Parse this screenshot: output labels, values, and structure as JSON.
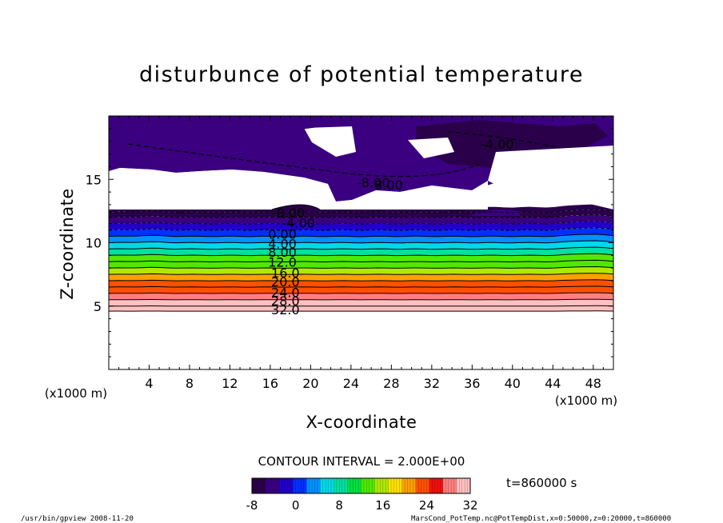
{
  "chart_data": {
    "type": "heatmap",
    "title": "disturbunce of potential temperature",
    "xlabel": "X-coordinate",
    "ylabel": "Z-coordinate",
    "x_unit": "(x1000 m)",
    "z_unit": "(x1000 m)",
    "xlim": [
      0,
      50
    ],
    "ylim": [
      0,
      20
    ],
    "x_ticks": [
      4,
      8,
      12,
      16,
      20,
      24,
      28,
      32,
      36,
      40,
      44,
      48
    ],
    "y_ticks": [
      5,
      10,
      15
    ],
    "contour_interval_text": "CONTOUR INTERVAL = 2.000E+00",
    "time_text": "t=860000 s",
    "colorbar": {
      "min": -8,
      "max": 32,
      "tick_labels": [
        "-8",
        "0",
        "8",
        "16",
        "24",
        "32"
      ],
      "tick_values": [
        -8,
        0,
        8,
        16,
        24,
        32
      ],
      "colors": [
        "#2a004a",
        "#3a0080",
        "#2200c8",
        "#0030ff",
        "#0090ff",
        "#00d8e8",
        "#00e0a0",
        "#00e040",
        "#50e800",
        "#b0e800",
        "#ffe000",
        "#ffa000",
        "#ff5000",
        "#f01010",
        "#ff8080",
        "#ffc0c0"
      ]
    },
    "contour_labels": [
      "-8.00",
      "-4.00",
      "0.00",
      "4.00",
      "8.00",
      "12.0",
      "16.0",
      "20.0",
      "24.0",
      "28.0",
      "32.0",
      "-4.00",
      "-8.00",
      "-8.00"
    ],
    "profile": [
      {
        "z": 4.6,
        "value": 32
      },
      {
        "z": 5.0,
        "value": 30
      },
      {
        "z": 5.5,
        "value": 28
      },
      {
        "z": 6.0,
        "value": 24
      },
      {
        "z": 6.5,
        "value": 22
      },
      {
        "z": 7.0,
        "value": 20
      },
      {
        "z": 7.5,
        "value": 16
      },
      {
        "z": 8.0,
        "value": 14
      },
      {
        "z": 8.5,
        "value": 12
      },
      {
        "z": 9.0,
        "value": 8
      },
      {
        "z": 9.5,
        "value": 6
      },
      {
        "z": 10.0,
        "value": 4
      },
      {
        "z": 10.5,
        "value": 0
      },
      {
        "z": 11.0,
        "value": -2
      },
      {
        "z": 11.5,
        "value": -4
      },
      {
        "z": 12.0,
        "value": -6
      },
      {
        "z": 12.4,
        "value": -8
      }
    ],
    "upper_values": [
      -4,
      -8
    ]
  },
  "footer": {
    "left": "/usr/bin/gpview   2008-11-20",
    "right": "MarsCond_PotTemp.nc@PotTempDist,x=0:50000,z=0:20000,t=860000"
  }
}
